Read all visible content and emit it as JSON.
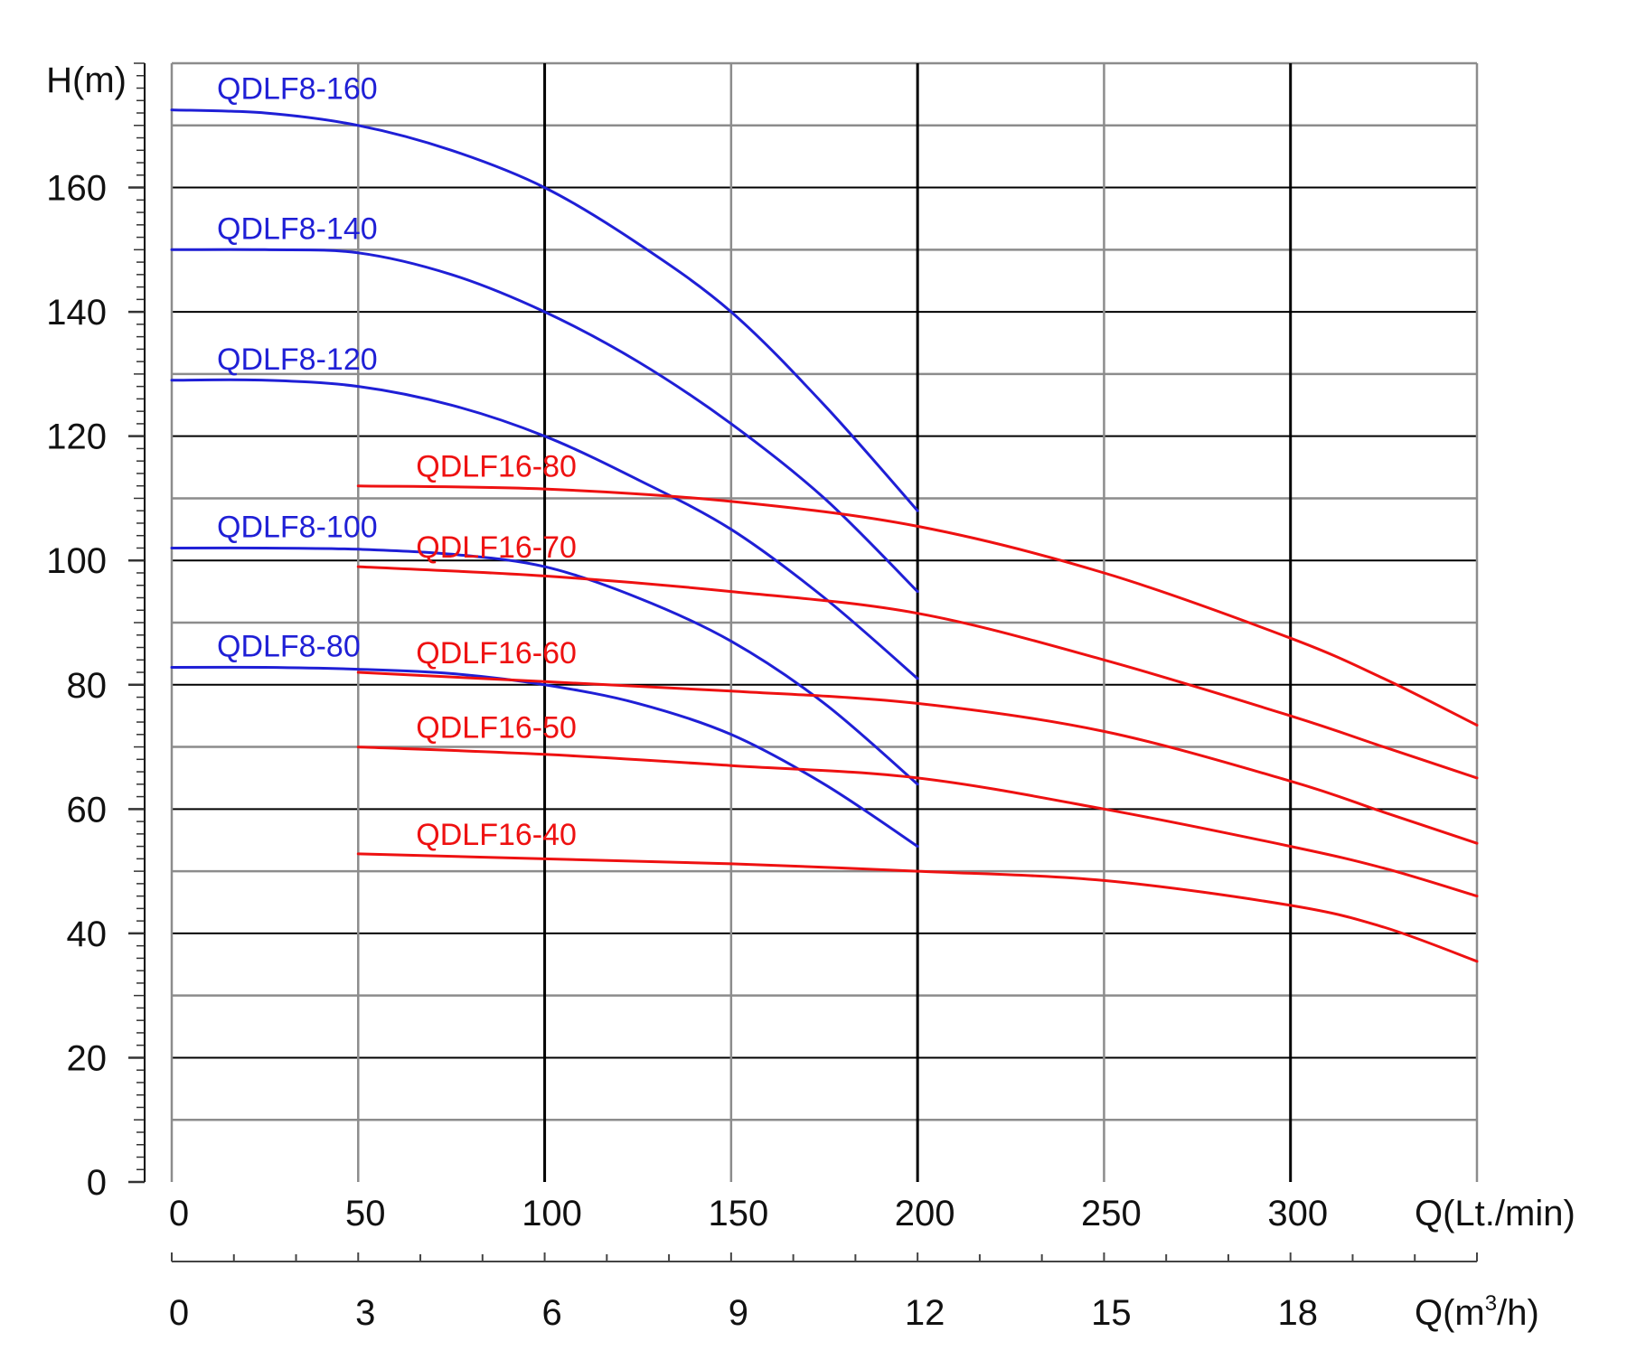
{
  "chart_data": {
    "type": "line",
    "y_axis": {
      "title": "H(m)",
      "range": [
        0,
        180
      ],
      "ticks": [
        0,
        20,
        40,
        60,
        80,
        100,
        120,
        140,
        160
      ],
      "minor_grid_step": 10
    },
    "x_axis_lpm": {
      "title": "Q(Lt./min)",
      "range": [
        0,
        350
      ],
      "ticks": [
        0,
        50,
        100,
        150,
        200,
        250,
        300
      ]
    },
    "x_axis_m3h": {
      "title_prefix": "Q(m",
      "title_superscript": "3",
      "title_suffix": "/h)",
      "range": [
        0,
        21
      ],
      "ticks": [
        0,
        3,
        6,
        9,
        12,
        15,
        18
      ]
    },
    "grid": true,
    "series": [
      {
        "name": "QDLF8-160",
        "color": "#1f1fd6",
        "points": [
          [
            0,
            172.5
          ],
          [
            25,
            172
          ],
          [
            50,
            170
          ],
          [
            75,
            166
          ],
          [
            100,
            160
          ],
          [
            125,
            151
          ],
          [
            150,
            140
          ],
          [
            175,
            125
          ],
          [
            200,
            108
          ]
        ]
      },
      {
        "name": "QDLF8-140",
        "color": "#1f1fd6",
        "points": [
          [
            0,
            150
          ],
          [
            25,
            150
          ],
          [
            50,
            149.5
          ],
          [
            75,
            146
          ],
          [
            100,
            140
          ],
          [
            125,
            132
          ],
          [
            150,
            122
          ],
          [
            175,
            110
          ],
          [
            200,
            95
          ]
        ]
      },
      {
        "name": "QDLF8-120",
        "color": "#1f1fd6",
        "points": [
          [
            0,
            129
          ],
          [
            25,
            129
          ],
          [
            50,
            128
          ],
          [
            75,
            125
          ],
          [
            100,
            120
          ],
          [
            125,
            113
          ],
          [
            150,
            105
          ],
          [
            175,
            94
          ],
          [
            200,
            81
          ]
        ]
      },
      {
        "name": "QDLF8-100",
        "color": "#1f1fd6",
        "points": [
          [
            0,
            102
          ],
          [
            25,
            102
          ],
          [
            50,
            101.8
          ],
          [
            75,
            101
          ],
          [
            100,
            99
          ],
          [
            125,
            94
          ],
          [
            150,
            87
          ],
          [
            175,
            77
          ],
          [
            200,
            64
          ]
        ]
      },
      {
        "name": "QDLF8-80",
        "color": "#1f1fd6",
        "points": [
          [
            0,
            82.8
          ],
          [
            25,
            82.8
          ],
          [
            50,
            82.5
          ],
          [
            75,
            81.8
          ],
          [
            100,
            80
          ],
          [
            125,
            77
          ],
          [
            150,
            72
          ],
          [
            175,
            64
          ],
          [
            200,
            54
          ]
        ]
      },
      {
        "name": "QDLF16-80",
        "color": "#ee1111",
        "points": [
          [
            50,
            112
          ],
          [
            100,
            111.5
          ],
          [
            150,
            109.5
          ],
          [
            200,
            105.5
          ],
          [
            250,
            98
          ],
          [
            300,
            87.5
          ],
          [
            325,
            81
          ],
          [
            350,
            73.5
          ]
        ]
      },
      {
        "name": "QDLF16-70",
        "color": "#ee1111",
        "points": [
          [
            50,
            99
          ],
          [
            100,
            97.5
          ],
          [
            150,
            95
          ],
          [
            200,
            91.5
          ],
          [
            250,
            84
          ],
          [
            300,
            75
          ],
          [
            325,
            70
          ],
          [
            350,
            65
          ]
        ]
      },
      {
        "name": "QDLF16-60",
        "color": "#ee1111",
        "points": [
          [
            50,
            82
          ],
          [
            100,
            80.5
          ],
          [
            150,
            79
          ],
          [
            200,
            77
          ],
          [
            250,
            72.5
          ],
          [
            300,
            64.5
          ],
          [
            325,
            59.5
          ],
          [
            350,
            54.5
          ]
        ]
      },
      {
        "name": "QDLF16-50",
        "color": "#ee1111",
        "points": [
          [
            50,
            70
          ],
          [
            100,
            68.8
          ],
          [
            150,
            67
          ],
          [
            200,
            65
          ],
          [
            250,
            60
          ],
          [
            300,
            54
          ],
          [
            325,
            50.5
          ],
          [
            350,
            46
          ]
        ]
      },
      {
        "name": "QDLF16-40",
        "color": "#ee1111",
        "points": [
          [
            50,
            52.8
          ],
          [
            100,
            52
          ],
          [
            150,
            51.2
          ],
          [
            200,
            50
          ],
          [
            250,
            48.5
          ],
          [
            300,
            44.5
          ],
          [
            325,
            41
          ],
          [
            350,
            35.5
          ]
        ]
      }
    ]
  }
}
